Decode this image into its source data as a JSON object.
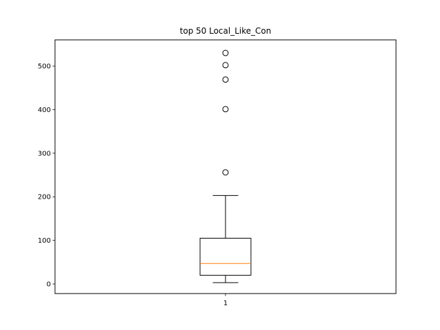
{
  "chart_data": {
    "type": "box",
    "title": "top 50 Local_Like_Con",
    "xlabel": "",
    "ylabel": "",
    "categories": [
      "1"
    ],
    "ylim": [
      -22,
      560
    ],
    "yticks": [
      0,
      100,
      200,
      300,
      400,
      500
    ],
    "grid": false,
    "boxes": [
      {
        "category": "1",
        "whisker_low": 3,
        "q1": 20,
        "median": 47,
        "q3": 105,
        "whisker_high": 203,
        "outliers": [
          256,
          401,
          469,
          502,
          530
        ]
      }
    ],
    "colors": {
      "box": "#000000",
      "median": "#ff7f0e",
      "outlier": "#000000"
    }
  }
}
